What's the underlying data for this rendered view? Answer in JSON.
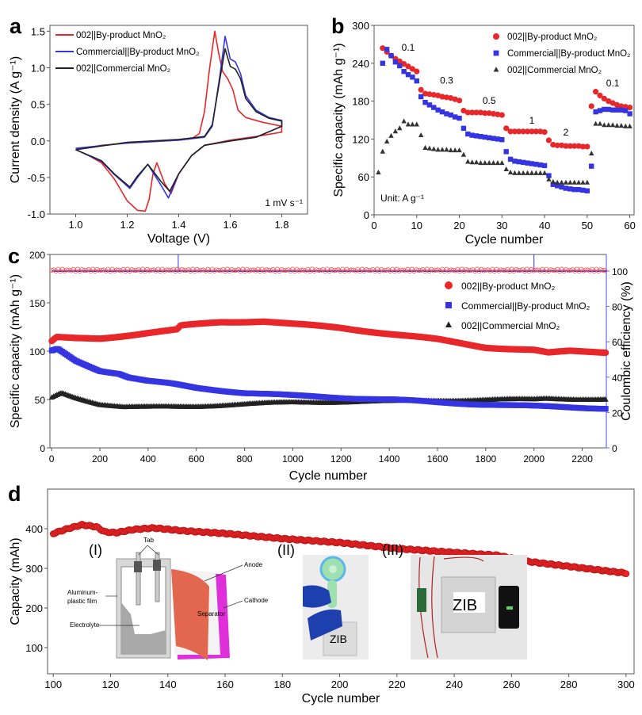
{
  "panel_letters": [
    "a",
    "b",
    "c",
    "d"
  ],
  "colors": {
    "red": "#e8272a",
    "blue": "#3434e0",
    "black": "#222222",
    "ce_axis": "#6b6bf0"
  },
  "chart_data": [
    {
      "type": "line",
      "panel": "a",
      "xlabel": "Voltage (V)",
      "ylabel": "Current density (A g⁻¹)",
      "xlim": [
        0.9,
        1.9
      ],
      "ylim": [
        -1.0,
        1.58
      ],
      "xticks": [
        "1.0",
        "1.2",
        "1.4",
        "1.6",
        "1.8"
      ],
      "xtick_values": [
        1.0,
        1.2,
        1.4,
        1.6,
        1.8
      ],
      "yticks": [
        "-1.0",
        "-0.5",
        "0.0",
        "0.5",
        "1.0",
        "1.5"
      ],
      "ytick_values": [
        -1.0,
        -0.5,
        0.0,
        0.5,
        1.0,
        1.5
      ],
      "annotation": "1 mV s⁻¹",
      "legend_position": "top-left",
      "series": [
        {
          "name": "002||By-product MnO₂",
          "color": "#e8272a",
          "points": [
            [
              1.0,
              -0.12
            ],
            [
              1.1,
              -0.06
            ],
            [
              1.2,
              -0.03
            ],
            [
              1.3,
              -0.01
            ],
            [
              1.4,
              0.01
            ],
            [
              1.45,
              0.03
            ],
            [
              1.48,
              0.1
            ],
            [
              1.5,
              0.4
            ],
            [
              1.52,
              1.0
            ],
            [
              1.54,
              1.5
            ],
            [
              1.555,
              1.2
            ],
            [
              1.57,
              0.95
            ],
            [
              1.59,
              0.85
            ],
            [
              1.61,
              0.7
            ],
            [
              1.63,
              0.42
            ],
            [
              1.66,
              0.32
            ],
            [
              1.72,
              0.26
            ],
            [
              1.8,
              0.2
            ],
            [
              1.8,
              0.12
            ],
            [
              1.7,
              0.06
            ],
            [
              1.6,
              0.01
            ],
            [
              1.5,
              -0.06
            ],
            [
              1.45,
              -0.2
            ],
            [
              1.4,
              -0.45
            ],
            [
              1.37,
              -0.72
            ],
            [
              1.345,
              -0.58
            ],
            [
              1.315,
              -0.3
            ],
            [
              1.3,
              -0.45
            ],
            [
              1.285,
              -0.8
            ],
            [
              1.27,
              -0.96
            ],
            [
              1.24,
              -0.95
            ],
            [
              1.2,
              -0.82
            ],
            [
              1.15,
              -0.52
            ],
            [
              1.1,
              -0.3
            ],
            [
              1.05,
              -0.2
            ],
            [
              1.0,
              -0.12
            ]
          ]
        },
        {
          "name": "Commercial||By-product MnO₂",
          "color": "#3434e0",
          "points": [
            [
              1.0,
              -0.1
            ],
            [
              1.2,
              -0.03
            ],
            [
              1.4,
              0.01
            ],
            [
              1.5,
              0.05
            ],
            [
              1.53,
              0.2
            ],
            [
              1.56,
              0.9
            ],
            [
              1.58,
              1.43
            ],
            [
              1.6,
              1.12
            ],
            [
              1.62,
              1.08
            ],
            [
              1.64,
              0.92
            ],
            [
              1.66,
              0.62
            ],
            [
              1.7,
              0.42
            ],
            [
              1.75,
              0.32
            ],
            [
              1.8,
              0.28
            ],
            [
              1.8,
              0.2
            ],
            [
              1.7,
              0.05
            ],
            [
              1.6,
              0.0
            ],
            [
              1.5,
              -0.06
            ],
            [
              1.45,
              -0.2
            ],
            [
              1.4,
              -0.45
            ],
            [
              1.36,
              -0.78
            ],
            [
              1.33,
              -0.6
            ],
            [
              1.28,
              -0.32
            ],
            [
              1.24,
              -0.5
            ],
            [
              1.21,
              -0.65
            ],
            [
              1.15,
              -0.46
            ],
            [
              1.1,
              -0.28
            ],
            [
              1.0,
              -0.12
            ]
          ]
        },
        {
          "name": "002||Commercial MnO₂",
          "color": "#222222",
          "points": [
            [
              1.0,
              -0.12
            ],
            [
              1.2,
              -0.02
            ],
            [
              1.4,
              0.02
            ],
            [
              1.5,
              0.06
            ],
            [
              1.53,
              0.22
            ],
            [
              1.56,
              0.85
            ],
            [
              1.58,
              1.26
            ],
            [
              1.6,
              1.02
            ],
            [
              1.62,
              0.98
            ],
            [
              1.64,
              0.85
            ],
            [
              1.66,
              0.58
            ],
            [
              1.7,
              0.4
            ],
            [
              1.75,
              0.31
            ],
            [
              1.8,
              0.27
            ],
            [
              1.8,
              0.2
            ],
            [
              1.7,
              0.05
            ],
            [
              1.6,
              0.0
            ],
            [
              1.5,
              -0.06
            ],
            [
              1.45,
              -0.2
            ],
            [
              1.4,
              -0.45
            ],
            [
              1.365,
              -0.69
            ],
            [
              1.33,
              -0.55
            ],
            [
              1.28,
              -0.32
            ],
            [
              1.24,
              -0.48
            ],
            [
              1.21,
              -0.63
            ],
            [
              1.15,
              -0.45
            ],
            [
              1.1,
              -0.27
            ],
            [
              1.0,
              -0.12
            ]
          ]
        }
      ]
    },
    {
      "type": "scatter",
      "panel": "b",
      "xlabel": "Cycle number",
      "ylabel": "Specific capacity (mAh g⁻¹)",
      "xlim": [
        0,
        61
      ],
      "ylim": [
        0,
        300
      ],
      "xticks": [
        "0",
        "10",
        "20",
        "30",
        "40",
        "50",
        "60"
      ],
      "xtick_values": [
        0,
        10,
        20,
        30,
        40,
        50,
        60
      ],
      "yticks": [
        "0",
        "60",
        "120",
        "180",
        "240",
        "300"
      ],
      "ytick_values": [
        0,
        60,
        120,
        180,
        240,
        300
      ],
      "annotation": "Unit: A g⁻¹",
      "rate_labels": [
        "0.1",
        "0.3",
        "0.5",
        "1",
        "2",
        "0.1"
      ],
      "legend_position": "top-right",
      "series": [
        {
          "name": "002||By-product MnO₂",
          "marker": "circle",
          "color": "#e8272a",
          "values": [
            null,
            264,
            258,
            252,
            247,
            243,
            239,
            235,
            231,
            227,
            198,
            192,
            191,
            190,
            189,
            187,
            186,
            185,
            183,
            181,
            165,
            162,
            162,
            162,
            162,
            161,
            161,
            160,
            159,
            158,
            137,
            132,
            132,
            132,
            132,
            132,
            132,
            132,
            132,
            131,
            118,
            111,
            110,
            110,
            109,
            109,
            109,
            109,
            108,
            108,
            172,
            195,
            189,
            184,
            180,
            177,
            174,
            172,
            171,
            170
          ]
        },
        {
          "name": "Commercial||By-product MnO₂",
          "marker": "square",
          "color": "#3434e0",
          "values": [
            null,
            240,
            262,
            252,
            242,
            236,
            227,
            222,
            218,
            212,
            187,
            178,
            174,
            170,
            166,
            163,
            160,
            158,
            155,
            153,
            137,
            128,
            126,
            125,
            124,
            123,
            122,
            121,
            120,
            119,
            100,
            88,
            85,
            84,
            83,
            82,
            81,
            80,
            79,
            78,
            62,
            48,
            46,
            44,
            42,
            41,
            40,
            40,
            39,
            38,
            77,
            163,
            165,
            167,
            167,
            166,
            166,
            166,
            165,
            160
          ]
        },
        {
          "name": "002||Commercial MnO₂",
          "marker": "triangle",
          "color": "#333333",
          "values": [
            67,
            100,
            116,
            125,
            132,
            137,
            148,
            143,
            143,
            143,
            126,
            106,
            105,
            104,
            103,
            103,
            103,
            102,
            102,
            102,
            95,
            84,
            83,
            83,
            82,
            82,
            82,
            82,
            82,
            82,
            72,
            67,
            66,
            66,
            66,
            66,
            66,
            66,
            66,
            66,
            56,
            52,
            51,
            51,
            51,
            51,
            51,
            51,
            51,
            51,
            97,
            144,
            144,
            142,
            142,
            142,
            141,
            141,
            140,
            140
          ]
        }
      ]
    },
    {
      "type": "scatter",
      "panel": "c",
      "xlabel": "Cycle number",
      "ylabel": "Specific capacity (mAh g⁻¹)",
      "y2label": "Coulombic efficiency (%)",
      "xlim": [
        -7,
        2300
      ],
      "ylim": [
        0,
        200
      ],
      "y2lim": [
        0,
        109.4
      ],
      "xticks": [
        "0",
        "200",
        "400",
        "600",
        "800",
        "1000",
        "1200",
        "1400",
        "1600",
        "1800",
        "2000",
        "2200"
      ],
      "xtick_values": [
        0,
        200,
        400,
        600,
        800,
        1000,
        1200,
        1400,
        1600,
        1800,
        2000,
        2200
      ],
      "yticks": [
        "0",
        "50",
        "100",
        "150",
        "200"
      ],
      "ytick_values": [
        0,
        50,
        100,
        150,
        200
      ],
      "y2ticks": [
        "0",
        "20",
        "40",
        "60",
        "80",
        "100"
      ],
      "y2tick_values": [
        0,
        20,
        40,
        60,
        80,
        100
      ],
      "legend_position": "right",
      "ce_spike_cycles": [
        525,
        2000
      ],
      "series": [
        {
          "name": "002||By-product MnO₂",
          "marker": "circle",
          "color": "#e8272a",
          "ce": 100.5,
          "keypoints": [
            [
              1,
              110
            ],
            [
              20,
              114
            ],
            [
              100,
              113
            ],
            [
              200,
              113
            ],
            [
              300,
              116
            ],
            [
              400,
              119
            ],
            [
              520,
              122
            ],
            [
              535,
              126
            ],
            [
              700,
              130
            ],
            [
              880,
              131
            ],
            [
              1000,
              128
            ],
            [
              1200,
              124
            ],
            [
              1400,
              118
            ],
            [
              1600,
              112
            ],
            [
              1800,
              104
            ],
            [
              2000,
              101
            ],
            [
              2060,
              98
            ],
            [
              2150,
              100
            ],
            [
              2300,
              99
            ]
          ]
        },
        {
          "name": "Commercial||By-product MnO₂",
          "marker": "square",
          "color": "#3434e0",
          "ce": 100,
          "keypoints": [
            [
              1,
              100
            ],
            [
              25,
              102
            ],
            [
              100,
              90
            ],
            [
              200,
              80
            ],
            [
              280,
              77
            ],
            [
              320,
              73
            ],
            [
              400,
              69
            ],
            [
              500,
              66
            ],
            [
              600,
              62
            ],
            [
              800,
              57
            ],
            [
              1000,
              54
            ],
            [
              1200,
              52
            ],
            [
              1400,
              50
            ],
            [
              1600,
              47
            ],
            [
              1800,
              45
            ],
            [
              2000,
              43
            ],
            [
              2300,
              41
            ]
          ]
        },
        {
          "name": "002||Commercial MnO₂",
          "marker": "triangle",
          "color": "#222222",
          "keypoints": [
            [
              1,
              52
            ],
            [
              40,
              57
            ],
            [
              100,
              52
            ],
            [
              200,
              45
            ],
            [
              300,
              42
            ],
            [
              400,
              42
            ],
            [
              600,
              43
            ],
            [
              800,
              45
            ],
            [
              1000,
              47
            ],
            [
              1400,
              48
            ],
            [
              1600,
              49
            ],
            [
              2000,
              50
            ],
            [
              2050,
              51
            ],
            [
              2300,
              50
            ]
          ]
        }
      ]
    },
    {
      "type": "scatter",
      "panel": "d",
      "xlabel": "Cycle number",
      "ylabel": "Capacity (mAh)",
      "xlim": [
        98,
        302.8
      ],
      "ylim": [
        34,
        500
      ],
      "xticks": [
        "100",
        "120",
        "140",
        "160",
        "180",
        "200",
        "220",
        "240",
        "260",
        "280",
        "300"
      ],
      "xtick_values": [
        100,
        120,
        140,
        160,
        180,
        200,
        220,
        240,
        260,
        280,
        300
      ],
      "yticks": [
        "100",
        "200",
        "300",
        "400"
      ],
      "ytick_values": [
        100,
        200,
        300,
        400
      ],
      "series": [
        {
          "name": "Capacity",
          "marker": "circle",
          "color": "#e8272a",
          "keypoints": [
            [
              100,
              388
            ],
            [
              105,
              400
            ],
            [
              110,
              410
            ],
            [
              115,
              405
            ],
            [
              118,
              392
            ],
            [
              122,
              390
            ],
            [
              128,
              398
            ],
            [
              135,
              402
            ],
            [
              145,
              395
            ],
            [
              160,
              388
            ],
            [
              180,
              375
            ],
            [
              200,
              365
            ],
            [
              220,
              350
            ],
            [
              240,
              340
            ],
            [
              255,
              333
            ],
            [
              265,
              318
            ],
            [
              280,
              305
            ],
            [
              295,
              292
            ],
            [
              300,
              288
            ]
          ]
        }
      ]
    }
  ],
  "insets": {
    "schematic": {
      "title": "(I)",
      "labels": {
        "tab": "Tab",
        "anode": "Anode",
        "film": "Aluminum-plastic film",
        "film_line1": "Aluminum-",
        "film_line2": "plastic film",
        "cathode": "Cathode",
        "separator": "Separator",
        "electrolyte": "Electrolyte"
      }
    },
    "photo_fan": {
      "title": "(II)",
      "label": "ZIB"
    },
    "photo_phone": {
      "title": "(III)",
      "label": "ZIB"
    }
  }
}
